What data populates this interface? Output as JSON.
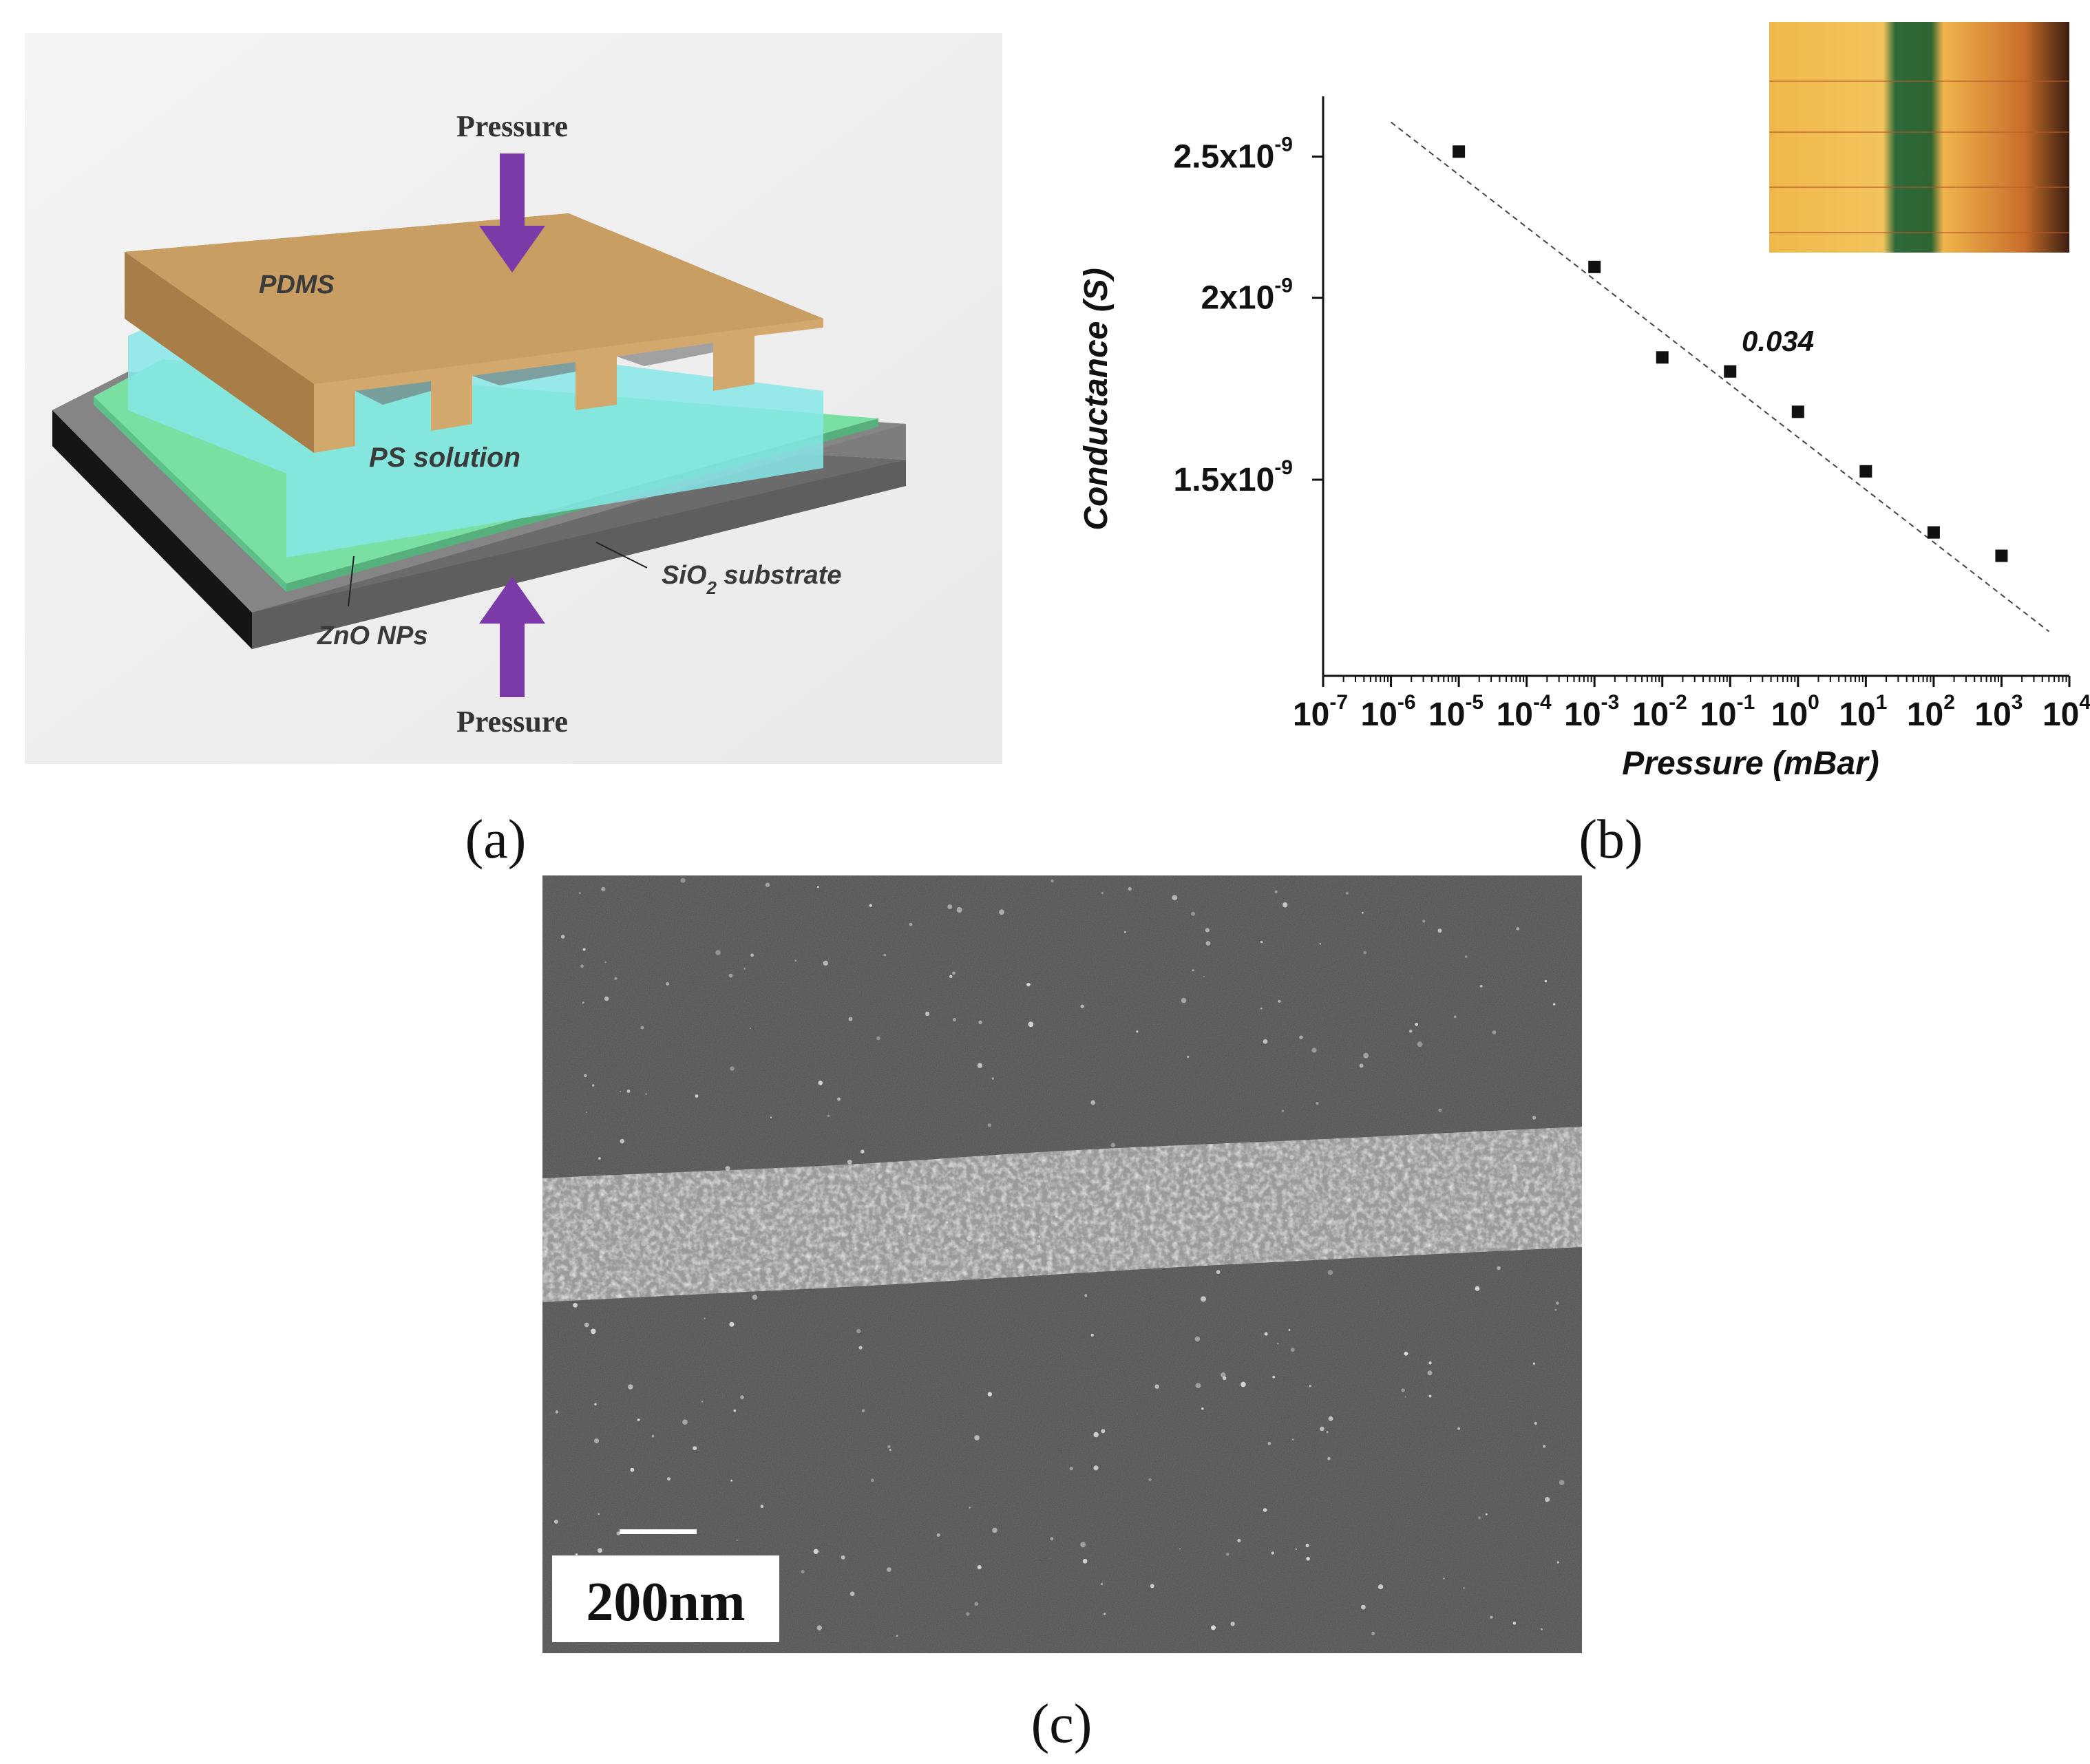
{
  "panel_a": {
    "label_pressure_top": "Pressure",
    "label_pressure_bottom": "Pressure",
    "label_pdms": "PDMS",
    "label_ps_solution": "PS solution",
    "label_sio2_main": "SiO",
    "label_sio2_sub": "2",
    "label_sio2_rest": " substrate",
    "label_zno": "ZnO NPs",
    "colors": {
      "pdms": "#c69a5e",
      "ps_solution": "#7fe0a8",
      "cyan_fluid": "#7fe6ee",
      "substrate": "#6e6e6e",
      "arrow": "#7b3aa8"
    }
  },
  "panel_b": {
    "slope_label": "0.034",
    "inset_image": "optical-micrograph-inset"
  },
  "panel_c": {
    "scale_bar_label": "200nm",
    "image": "sem-micrograph-nanoparticle-line"
  },
  "captions": {
    "a": "(a)",
    "b": "(b)",
    "c": "(c)"
  },
  "chart_data": {
    "type": "scatter",
    "xlabel": "Pressure (mBar)",
    "ylabel": "Conductance (S)",
    "x_scale": "log",
    "y_scale": "log",
    "xlim": [
      1e-07,
      10000.0
    ],
    "ylim": [
      1.1e-09,
      2.75e-09
    ],
    "x_ticks": [
      {
        "base": "10",
        "exp": "-7"
      },
      {
        "base": "10",
        "exp": "-6"
      },
      {
        "base": "10",
        "exp": "-5"
      },
      {
        "base": "10",
        "exp": "-4"
      },
      {
        "base": "10",
        "exp": "-3"
      },
      {
        "base": "10",
        "exp": "-2"
      },
      {
        "base": "10",
        "exp": "-1"
      },
      {
        "base": "10",
        "exp": "0"
      },
      {
        "base": "10",
        "exp": "1"
      },
      {
        "base": "10",
        "exp": "2"
      },
      {
        "base": "10",
        "exp": "3"
      },
      {
        "base": "10",
        "exp": "4"
      }
    ],
    "y_ticks": [
      {
        "value": 2.5e-09,
        "mant": "2.5x10",
        "exp": "-9"
      },
      {
        "value": 2e-09,
        "mant": "2x10",
        "exp": "-9"
      },
      {
        "value": 1.5e-09,
        "mant": "1.5x10",
        "exp": "-9"
      }
    ],
    "series": [
      {
        "x": [
          1e-05,
          0.001,
          0.01,
          0.1,
          1,
          10,
          100,
          1000
        ],
        "y": [
          2.52e-09,
          2.1e-09,
          1.82e-09,
          1.78e-09,
          1.67e-09,
          1.52e-09,
          1.38e-09,
          1.33e-09
        ]
      }
    ],
    "fit_line": {
      "x": [
        1e-06,
        5000
      ],
      "y": [
        2.64e-09,
        1.18e-09
      ]
    },
    "grid": false
  }
}
